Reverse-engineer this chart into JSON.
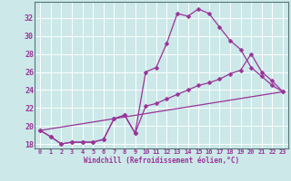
{
  "xlabel": "Windchill (Refroidissement éolien,°C)",
  "background_color": "#cce8e8",
  "line_color": "#993399",
  "grid_color": "#aacccc",
  "xlim": [
    -0.5,
    23.5
  ],
  "ylim": [
    17.5,
    33.8
  ],
  "yticks": [
    18,
    20,
    22,
    24,
    26,
    28,
    30,
    32
  ],
  "xticks": [
    0,
    1,
    2,
    3,
    4,
    5,
    6,
    7,
    8,
    9,
    10,
    11,
    12,
    13,
    14,
    15,
    16,
    17,
    18,
    19,
    20,
    21,
    22,
    23
  ],
  "series": [
    {
      "x": [
        0,
        1,
        2,
        3,
        4,
        5,
        6,
        7,
        8,
        9,
        10,
        11,
        12,
        13,
        14,
        15,
        16,
        17,
        18,
        19,
        20,
        21,
        22,
        23
      ],
      "y": [
        19.5,
        18.8,
        18.0,
        18.2,
        18.2,
        18.2,
        18.5,
        20.8,
        21.2,
        19.2,
        26.0,
        26.5,
        29.2,
        32.5,
        32.2,
        33.0,
        32.5,
        31.0,
        29.5,
        28.5,
        26.5,
        25.5,
        24.5,
        23.8
      ]
    },
    {
      "x": [
        0,
        1,
        2,
        3,
        4,
        5,
        6,
        7,
        8,
        9,
        10,
        11,
        12,
        13,
        14,
        15,
        16,
        17,
        18,
        19,
        20,
        21,
        22,
        23
      ],
      "y": [
        19.5,
        18.8,
        18.0,
        18.2,
        18.2,
        18.2,
        18.5,
        20.8,
        21.2,
        19.2,
        22.2,
        22.5,
        23.0,
        23.5,
        24.0,
        24.5,
        24.8,
        25.2,
        25.8,
        26.2,
        28.0,
        26.0,
        25.0,
        23.8
      ]
    },
    {
      "x": [
        0,
        23
      ],
      "y": [
        19.5,
        23.8
      ],
      "no_markers": true
    }
  ]
}
